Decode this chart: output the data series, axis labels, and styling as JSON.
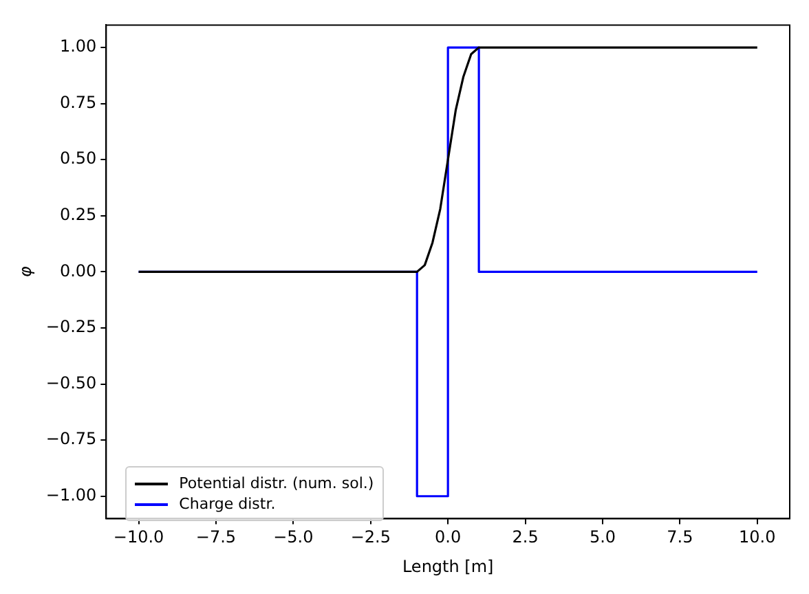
{
  "chart_data": {
    "type": "line",
    "xlabel": "Length [m]",
    "ylabel": "φ",
    "legend": "bottom left",
    "grid": false,
    "marker": "none",
    "line_style": "solid",
    "xlim": [
      -11.05,
      11.05
    ],
    "ylim": [
      -1.1,
      1.1
    ],
    "xticks": [
      {
        "value": -10,
        "label": "−10.0"
      },
      {
        "value": -7.5,
        "label": "−7.5"
      },
      {
        "value": -5,
        "label": "−5.0"
      },
      {
        "value": -2.5,
        "label": "−2.5"
      },
      {
        "value": 0,
        "label": "0.0"
      },
      {
        "value": 2.5,
        "label": "2.5"
      },
      {
        "value": 5,
        "label": "5.0"
      },
      {
        "value": 7.5,
        "label": "7.5"
      },
      {
        "value": 10,
        "label": "10.0"
      }
    ],
    "yticks": [
      {
        "value": -1,
        "label": "−1.00"
      },
      {
        "value": -0.75,
        "label": "−0.75"
      },
      {
        "value": -0.5,
        "label": "−0.50"
      },
      {
        "value": -0.25,
        "label": "−0.25"
      },
      {
        "value": 0,
        "label": "0.00"
      },
      {
        "value": 0.25,
        "label": "0.25"
      },
      {
        "value": 0.5,
        "label": "0.50"
      },
      {
        "value": 0.75,
        "label": "0.75"
      },
      {
        "value": 1,
        "label": "1.00"
      }
    ],
    "series": [
      {
        "name": "Potential distr. (num. sol.)",
        "color": "#000000",
        "x": [
          -10,
          -1,
          -0.75,
          -0.5,
          -0.25,
          0,
          0.25,
          0.5,
          0.75,
          1,
          10
        ],
        "values": [
          0,
          0,
          0.03,
          0.13,
          0.28,
          0.5,
          0.72,
          0.87,
          0.97,
          1,
          1
        ]
      },
      {
        "name": "Charge distr.",
        "color": "#0000ff",
        "x": [
          -10,
          -1,
          -1,
          0,
          0,
          1,
          1,
          10
        ],
        "values": [
          0,
          0,
          -1,
          -1,
          1,
          1,
          0,
          0
        ]
      }
    ]
  }
}
